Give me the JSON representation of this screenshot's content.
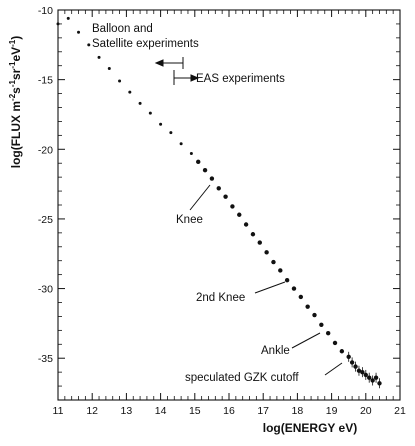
{
  "chart_data": {
    "type": "scatter",
    "xlabel": "log(ENERGY eV)",
    "ylabel_parts": {
      "main": "log(FLUX  m",
      "exp1": "-2",
      "s": "s",
      "exp2": "-1",
      "sr": "sr",
      "exp3": "-1",
      "ev": "eV",
      "exp4": "-1",
      "close": ")"
    },
    "xlim": [
      11,
      21
    ],
    "ylim": [
      -38,
      -10
    ],
    "x_ticks": [
      11,
      12,
      13,
      14,
      15,
      16,
      17,
      18,
      19,
      20,
      21
    ],
    "y_ticks": [
      -10,
      -15,
      -20,
      -25,
      -30,
      -35
    ],
    "grid": false,
    "series": [
      {
        "x": [
          11.0,
          11.3,
          11.6,
          11.9,
          12.2,
          12.5,
          12.8,
          13.1,
          13.4,
          13.7,
          14.0,
          14.3,
          14.6,
          14.9,
          15.1,
          15.3,
          15.5,
          15.7,
          15.9,
          16.1,
          16.3,
          16.5,
          16.7,
          16.9,
          17.1,
          17.3,
          17.5,
          17.7,
          17.9,
          18.1,
          18.3,
          18.5,
          18.7,
          18.9,
          19.1,
          19.3,
          19.5,
          19.6,
          19.7,
          19.8,
          19.9,
          20.0,
          20.1,
          20.2,
          20.3,
          20.4
        ],
        "y": [
          -11.0,
          -10.6,
          -11.6,
          -12.5,
          -13.4,
          -14.2,
          -15.1,
          -15.9,
          -16.7,
          -17.4,
          -18.2,
          -18.8,
          -19.6,
          -20.3,
          -20.9,
          -21.5,
          -22.1,
          -22.8,
          -23.4,
          -24.1,
          -24.7,
          -25.4,
          -26.1,
          -26.7,
          -27.4,
          -28.1,
          -28.7,
          -29.4,
          -30.0,
          -30.6,
          -31.3,
          -31.9,
          -32.6,
          -33.2,
          -33.9,
          -34.5,
          -34.9,
          -35.3,
          -35.6,
          -35.9,
          -36.0,
          -36.2,
          -36.4,
          -36.6,
          -36.4,
          -36.8
        ]
      }
    ],
    "annotations": {
      "balloon_line1": "Balloon and",
      "balloon_line2": "Satellite experiments",
      "eas": "EAS experiments",
      "knee": "Knee",
      "knee2": "2nd Knee",
      "ankle": "Ankle",
      "gzk": "speculated GZK cutoff"
    }
  }
}
